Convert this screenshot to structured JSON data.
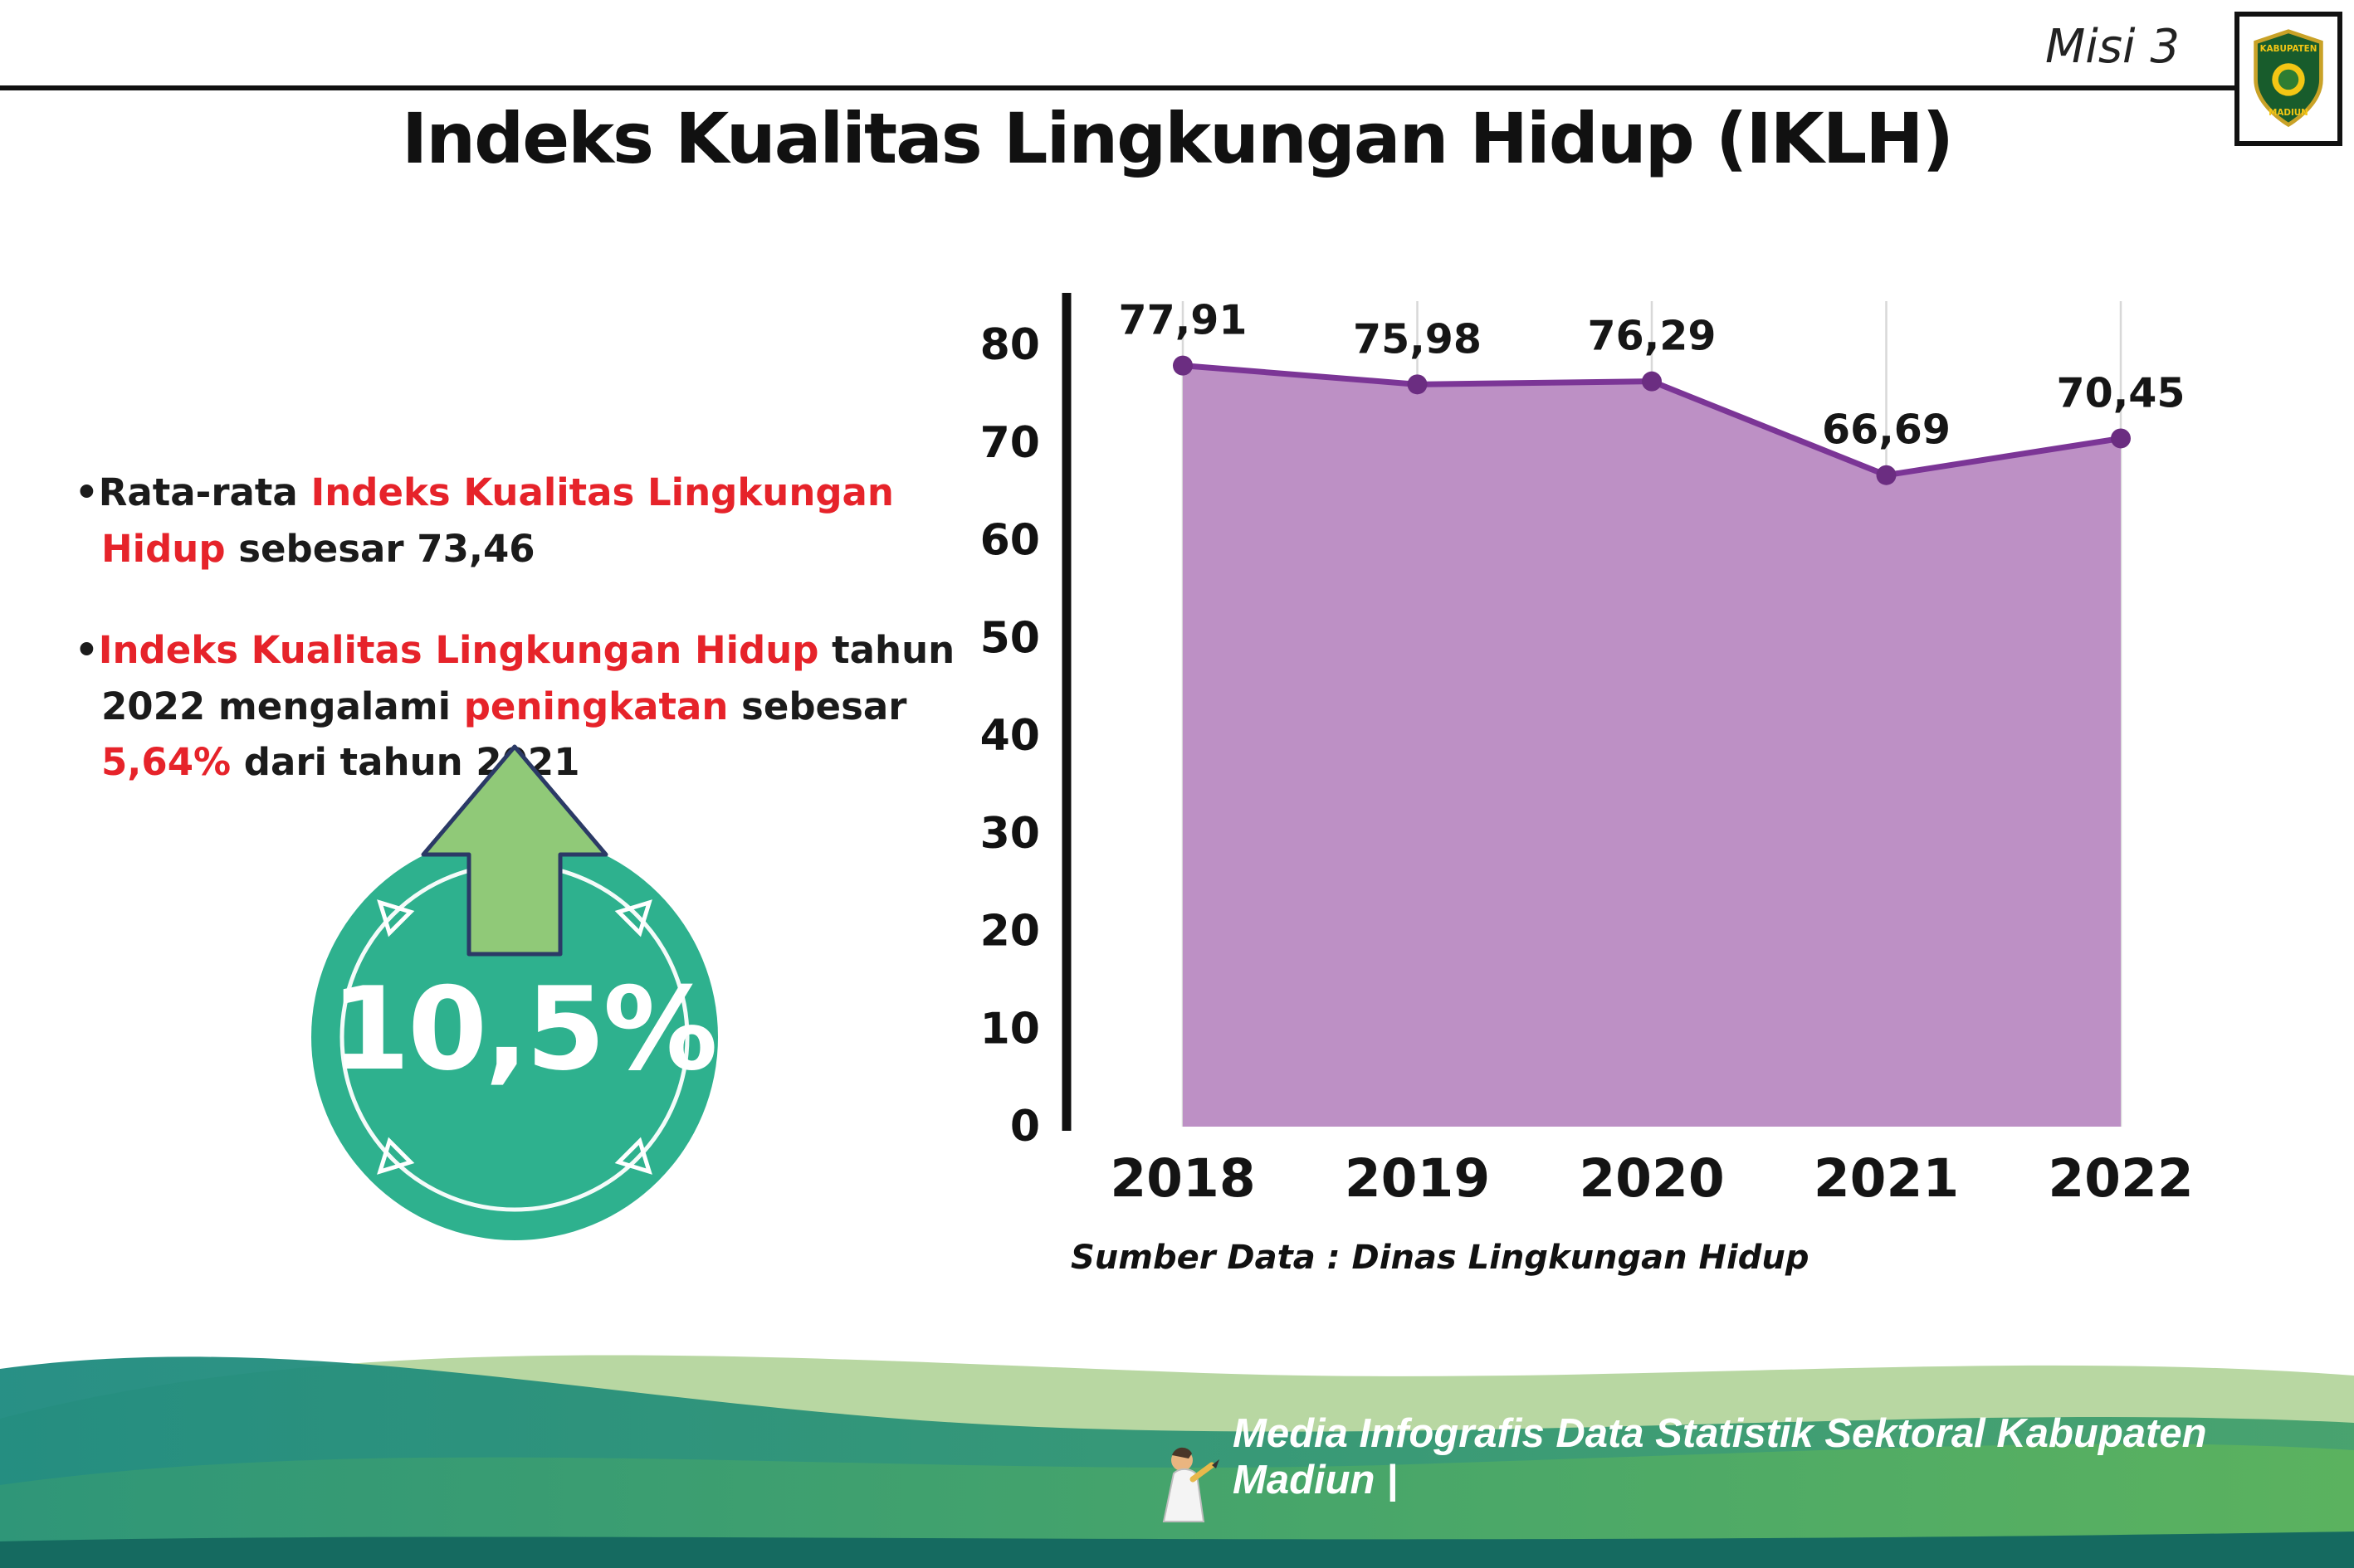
{
  "header": {
    "misi_label": "Misi 3",
    "title": "Indeks Kualitas Lingkungan Hidup (IKLH)",
    "logo": {
      "line1": "KABUPATEN",
      "line2": "MADIUN"
    }
  },
  "bullets": [
    {
      "segments": [
        {
          "t": "Rata-rata ",
          "c": "k"
        },
        {
          "t": "Indeks Kualitas Lingkungan Hidup",
          "c": "r"
        },
        {
          "t": " sebesar 73,46",
          "c": "k"
        }
      ]
    },
    {
      "segments": [
        {
          "t": "Indeks Kualitas Lingkungan Hidup",
          "c": "r"
        },
        {
          "t": " tahun 2022 mengalami ",
          "c": "k"
        },
        {
          "t": "peningkatan",
          "c": "r"
        },
        {
          "t": " sebesar ",
          "c": "k"
        },
        {
          "t": "5,64%",
          "c": "r"
        },
        {
          "t": " dari tahun 2021",
          "c": "k"
        }
      ]
    }
  ],
  "badge": {
    "value": "10,5%"
  },
  "chart_data": {
    "type": "area",
    "title": "",
    "categories": [
      "2018",
      "2019",
      "2020",
      "2021",
      "2022"
    ],
    "values": [
      77.91,
      75.98,
      76.29,
      66.69,
      70.45
    ],
    "value_labels": [
      "77,91",
      "75,98",
      "76,29",
      "66,69",
      "70,45"
    ],
    "xlabel": "",
    "ylabel": "",
    "ylim": [
      0,
      85
    ],
    "yticks": [
      0,
      10,
      20,
      30,
      40,
      50,
      60,
      70,
      80
    ],
    "grid": "vertical-light",
    "legend": "none",
    "line_color": "#7b3596",
    "fill_color": "#bd90c5",
    "dot_color": "#6b2d81",
    "source": "Sumber Data : Dinas Lingkungan Hidup"
  },
  "footer": {
    "credit": "Media Infografis Data Statistik Sektoral Kabupaten Madiun |"
  },
  "colors": {
    "accent_red": "#e6232a",
    "badge_teal": "#2eb18e",
    "arrow_green": "#90c978",
    "footer_teal": "#1d8a7f",
    "footer_green": "#5bb25f"
  }
}
